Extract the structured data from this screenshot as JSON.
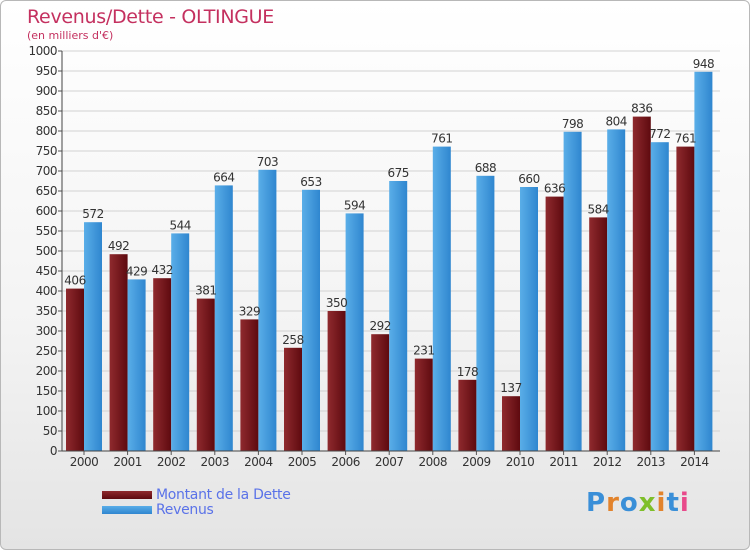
{
  "chart_data": {
    "type": "bar",
    "title": "Revenus/Dette - OLTINGUE",
    "subtitle": "(en milliers d'€)",
    "categories": [
      "2000",
      "2001",
      "2002",
      "2003",
      "2004",
      "2005",
      "2006",
      "2007",
      "2008",
      "2009",
      "2010",
      "2011",
      "2012",
      "2013",
      "2014"
    ],
    "series": [
      {
        "name": "Montant de la Dette",
        "color": "#6b0f14",
        "values": [
          406,
          492,
          432,
          381,
          329,
          258,
          350,
          292,
          231,
          178,
          137,
          636,
          584,
          836,
          761
        ]
      },
      {
        "name": "Revenus",
        "color": "#3f97db",
        "values": [
          572,
          429,
          544,
          664,
          703,
          653,
          594,
          675,
          761,
          688,
          660,
          798,
          804,
          772,
          948
        ]
      }
    ],
    "ylim": [
      0,
      1000
    ],
    "yticks": [
      0,
      50,
      100,
      150,
      200,
      250,
      300,
      350,
      400,
      450,
      500,
      550,
      600,
      650,
      700,
      750,
      800,
      850,
      900,
      950,
      1000
    ],
    "grid": true,
    "legend_position": "bottom-left",
    "logo": {
      "text": "Proxiti",
      "letter_colors": [
        "#3a8fd8",
        "#e2832c",
        "#3a8fd8",
        "#7fbf2a",
        "#e2832c",
        "#3a8fd8",
        "#e84a8b"
      ]
    }
  }
}
